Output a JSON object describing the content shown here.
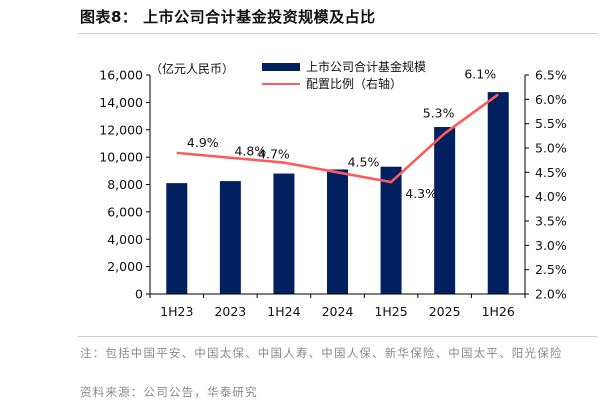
{
  "figure": {
    "title": "图表8： 上市公司合计基金投资规模及占比",
    "note": "注：包括中国平安、中国太保、中国人寿、中国人保、新华保险、中国太平、阳光保险",
    "source": "资料来源：公司公告，华泰研究"
  },
  "chart_data": {
    "type": "bar",
    "categories": [
      "1H23",
      "2023",
      "1H24",
      "2024",
      "1H25",
      "2025",
      "1H26"
    ],
    "y_unit_label": "（亿元人民币）",
    "series": [
      {
        "name": "上市公司合计基金规模",
        "type": "bar",
        "axis": "left",
        "color": "#002060",
        "values": [
          8100,
          8250,
          8800,
          9100,
          9300,
          12200,
          14750
        ]
      },
      {
        "name": "配置比例（右轴）",
        "type": "line",
        "axis": "right",
        "color": "#ff5a5a",
        "values": [
          4.9,
          4.8,
          4.7,
          4.5,
          4.3,
          5.3,
          6.1
        ],
        "data_labels": [
          "4.9%",
          "4.8%",
          "4.7%",
          "4.5%",
          "4.3%",
          "5.3%",
          "6.1%"
        ]
      }
    ],
    "y_left": {
      "min": 0,
      "max": 16000,
      "ticks": [
        "0",
        "2,000",
        "4,000",
        "6,000",
        "8,000",
        "10,000",
        "12,000",
        "14,000",
        "16,000"
      ]
    },
    "y_right": {
      "min": 2.0,
      "max": 6.5,
      "ticks": [
        "2.0%",
        "2.5%",
        "3.0%",
        "3.5%",
        "4.0%",
        "4.5%",
        "5.0%",
        "5.5%",
        "6.0%",
        "6.5%"
      ]
    },
    "grid": false,
    "legend_position": "top-center"
  }
}
